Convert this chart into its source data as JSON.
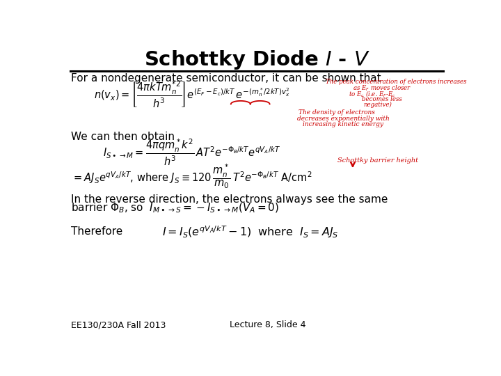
{
  "background_color": "#ffffff",
  "text_color": "#000000",
  "red_color": "#cc0000",
  "title": "Schottky Diode $\\mathbf{\\mathit{I}}$ - $\\mathbf{\\mathit{V}}$",
  "footer_left": "EE130/230A Fall 2013",
  "footer_right": "Lecture 8, Slide 4",
  "line1": "For a nondegenerate semiconductor, it can be shown that",
  "line2": "We can then obtain",
  "line3": "In the reverse direction, the electrons always see the same",
  "line4b": "Therefore",
  "eq1": "$n(v_x) = \\left[\\dfrac{4\\pi k T m_n^{*2}}{h^3}\\right] e^{(E_F - E_c)/kT} \\, e^{-(m_n^*/2kT)v_x^2}$",
  "eq2": "$I_{S\\bullet\\rightarrow M} = \\dfrac{4\\pi q m_n^* k^2}{h^3}\\, AT^2 e^{-\\Phi_B/kT} e^{qV_A/kT}$",
  "eq3": "$= AJ_S e^{qV_A/kT}$, where $J_S \\equiv 120\\, \\dfrac{m_n^*}{m_0}\\, T^2 e^{-\\Phi_B/kT}$ A/cm$^2$",
  "eq4": "barrier $\\Phi_B$, so  $I_{M\\bullet\\rightarrow S} = -I_{S\\bullet\\rightarrow M}(V_A = 0)$",
  "eq5": "$I = I_S\\left(e^{qV_A/kT} - 1\\right)$  where  $I_S = AJ_S$",
  "red_top": [
    "The peak concentration of electrons increases",
    "as E$_F$ moves closer",
    "to E$_c$ (i.e. E$_F$-E$_c$",
    "becomes less",
    "negative)"
  ],
  "red_mid": [
    "The density of electrons",
    "decreases exponentially with",
    "increasing kinetic energy"
  ],
  "red_barrier": "Schottky barrier height"
}
